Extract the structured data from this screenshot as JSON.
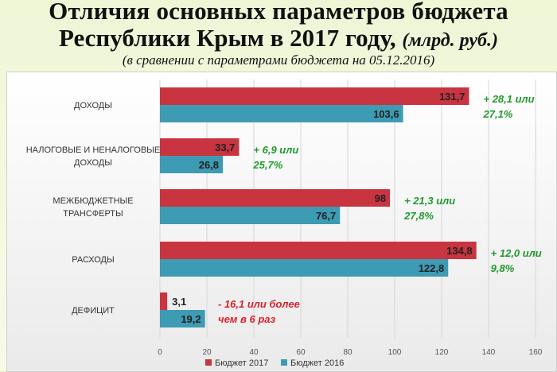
{
  "header": {
    "title_line1": "Отличия основных параметров бюджета",
    "title_line2": "Республики Крым в 2017 году,",
    "title_unit": "(млрд. руб.)",
    "subtitle": "(в сравнении с параметрами бюджета на 05.12.2016)"
  },
  "colors": {
    "series_2017": "#c8343f",
    "series_2016": "#3d9bb3",
    "positive": "#1f9a2e",
    "negative": "#d8222c"
  },
  "chart_data": {
    "type": "bar",
    "orientation": "horizontal",
    "categories": [
      [
        "ДОХОДЫ"
      ],
      [
        "НАЛОГОВЫЕ И НЕНАЛОГОВЫЕ",
        "ДОХОДЫ"
      ],
      [
        "МЕЖБЮДЖЕТНЫЕ",
        "ТРАНСФЕРТЫ"
      ],
      [
        "РАСХОДЫ"
      ],
      [
        "ДЕФИЦИТ"
      ]
    ],
    "series": [
      {
        "name": "Бюджет 2017",
        "values": [
          131.7,
          33.7,
          98,
          134.8,
          3.1
        ],
        "labels": [
          "131,7",
          "33,7",
          "98",
          "134,8",
          "3,1"
        ]
      },
      {
        "name": "Бюджет 2016",
        "values": [
          103.6,
          26.8,
          76.7,
          122.8,
          19.2
        ],
        "labels": [
          "103,6",
          "26,8",
          "76,7",
          "122,8",
          "19,2"
        ]
      }
    ],
    "annotations": [
      {
        "lines": [
          "+ 28,1 или",
          "27,1%"
        ],
        "sign": "positive"
      },
      {
        "lines": [
          "+ 6,9 или",
          "25,7%"
        ],
        "sign": "positive"
      },
      {
        "lines": [
          "+ 21,3 или",
          "27,8%"
        ],
        "sign": "positive"
      },
      {
        "lines": [
          "+ 12,0 или",
          "9,8%"
        ],
        "sign": "positive"
      },
      {
        "lines": [
          "- 16,1 или более",
          "чем в 6 раз"
        ],
        "sign": "negative"
      }
    ],
    "xlim": [
      0,
      160
    ],
    "xticks": [
      0,
      20,
      40,
      60,
      80,
      100,
      120,
      140,
      160
    ],
    "grid": true,
    "legend_position": "bottom"
  }
}
